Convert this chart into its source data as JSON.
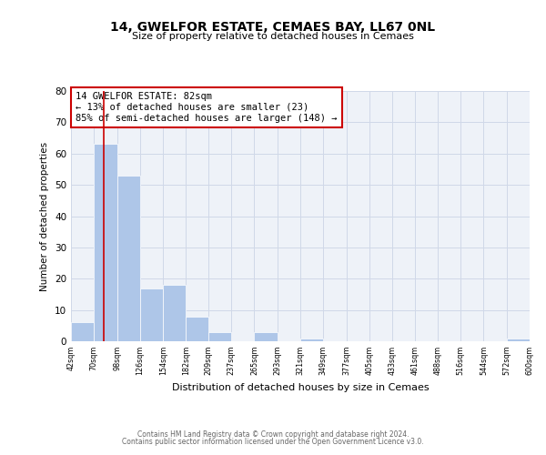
{
  "title": "14, GWELFOR ESTATE, CEMAES BAY, LL67 0NL",
  "subtitle": "Size of property relative to detached houses in Cemaes",
  "xlabel": "Distribution of detached houses by size in Cemaes",
  "ylabel": "Number of detached properties",
  "bin_edges": [
    42,
    70,
    98,
    126,
    154,
    182,
    209,
    237,
    265,
    293,
    321,
    349,
    377,
    405,
    433,
    461,
    488,
    516,
    544,
    572,
    600
  ],
  "bin_heights": [
    6,
    63,
    53,
    17,
    18,
    8,
    3,
    0,
    3,
    0,
    1,
    0,
    0,
    0,
    0,
    0,
    0,
    0,
    0,
    1
  ],
  "bar_color": "#aec6e8",
  "property_line_x": 82,
  "property_line_color": "#cc0000",
  "annotation_title": "14 GWELFOR ESTATE: 82sqm",
  "annotation_line1": "← 13% of detached houses are smaller (23)",
  "annotation_line2": "85% of semi-detached houses are larger (148) →",
  "annotation_box_color": "#cc0000",
  "annotation_fontsize": 7.5,
  "ylim": [
    0,
    80
  ],
  "xlim": [
    42,
    600
  ],
  "yticks": [
    0,
    10,
    20,
    30,
    40,
    50,
    60,
    70,
    80
  ],
  "xtick_labels": [
    "42sqm",
    "70sqm",
    "98sqm",
    "126sqm",
    "154sqm",
    "182sqm",
    "209sqm",
    "237sqm",
    "265sqm",
    "293sqm",
    "321sqm",
    "349sqm",
    "377sqm",
    "405sqm",
    "433sqm",
    "461sqm",
    "488sqm",
    "516sqm",
    "544sqm",
    "572sqm",
    "600sqm"
  ],
  "grid_color": "#d0d8e8",
  "bg_color": "#eef2f8",
  "footer1": "Contains HM Land Registry data © Crown copyright and database right 2024.",
  "footer2": "Contains public sector information licensed under the Open Government Licence v3.0."
}
